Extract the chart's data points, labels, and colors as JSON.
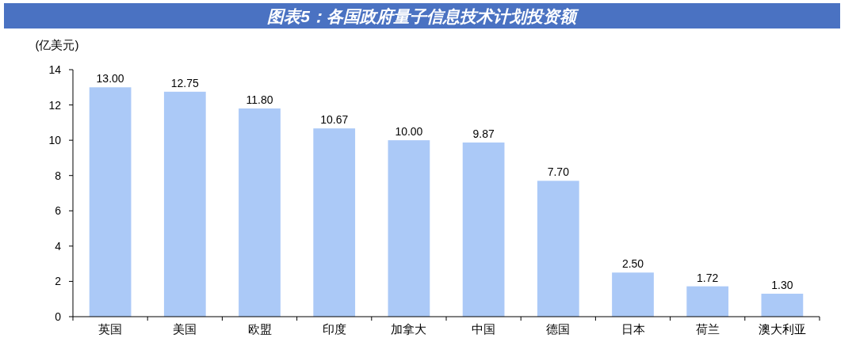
{
  "chart_data": {
    "type": "bar",
    "title": "图表5：各国政府量子信息技术计划投资额",
    "ylabel": "(亿美元)",
    "categories": [
      "英国",
      "美国",
      "欧盟",
      "印度",
      "加拿大",
      "中国",
      "德国",
      "日本",
      "荷兰",
      "澳大利亚"
    ],
    "values": [
      13.0,
      12.75,
      11.8,
      10.67,
      10.0,
      9.87,
      7.7,
      2.5,
      1.72,
      1.3
    ],
    "value_labels": [
      "13.00",
      "12.75",
      "11.80",
      "10.67",
      "10.00",
      "9.87",
      "7.70",
      "2.50",
      "1.72",
      "1.30"
    ],
    "color": "#abc9f7",
    "ylim": [
      0,
      14
    ],
    "yticks": [
      0,
      2,
      4,
      6,
      8,
      10,
      12,
      14
    ]
  }
}
